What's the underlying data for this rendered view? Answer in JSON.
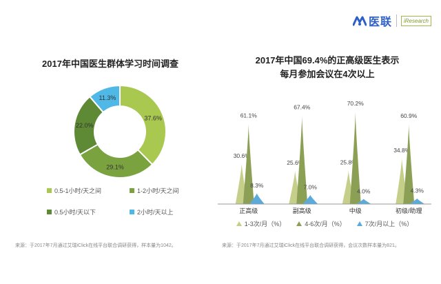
{
  "header": {
    "brand": "医联",
    "partner": "iResearch"
  },
  "colors": {
    "light_green": "#a9c850",
    "medium_green": "#7aa33f",
    "dark_green": "#5e8a36",
    "sky_blue": "#4fb8e6",
    "mtn_light": "#c6cf8a",
    "mtn_olive": "#8ca055",
    "mtn_blue": "#5aabdc",
    "brand_blue": "#2d5fc7"
  },
  "chart_data": [
    {
      "type": "pie",
      "variant": "donut",
      "title": "2017年中国医生群体学习时间调查",
      "slices": [
        {
          "label": "0.5-1小时/天之间",
          "value": 37.6,
          "value_label": "37.6%",
          "color": "#a9c850"
        },
        {
          "label": "1-2小时/天之间",
          "value": 29.1,
          "value_label": "29.1%",
          "color": "#7aa33f"
        },
        {
          "label": "0.5小时/天以下",
          "value": 22.0,
          "value_label": "22.0%",
          "color": "#5e8a36"
        },
        {
          "label": "2小时/天以上",
          "value": 11.3,
          "value_label": "11.3%",
          "color": "#4fb8e6"
        }
      ],
      "legend_rows": [
        [
          "0.5-1小时/天之间",
          "1-2小时/天之间"
        ],
        [
          "0.5小时/天以下",
          "2小时/天以上"
        ]
      ],
      "source": "来源：于2017年7月通过艾瑞iClick在线平台联合调研获得，样本量为1042。"
    },
    {
      "type": "bar",
      "variant": "mountain",
      "title": "2017年中国69.4%的正高级医生表示",
      "subtitle": "每月参加会议在4次以上",
      "categories": [
        "正高级",
        "副高级",
        "中级",
        "初级/助理"
      ],
      "series": [
        {
          "name": "1-3次/月（%）",
          "values": [
            30.6,
            25.6,
            25.8,
            34.8
          ],
          "labels": [
            "30.6%",
            "25.6%",
            "25.8%",
            "34.8%"
          ],
          "color": "#c6cf8a"
        },
        {
          "name": "4-6次/月（%）",
          "values": [
            61.1,
            67.4,
            70.2,
            60.9
          ],
          "labels": [
            "61.1%",
            "67.4%",
            "70.2%",
            "60.9%"
          ],
          "color": "#8ca055"
        },
        {
          "name": "7次/月以上（%）",
          "values": [
            8.3,
            7.0,
            4.0,
            4.3
          ],
          "labels": [
            "8.3%",
            "7.0%",
            "4.0%",
            "4.3%"
          ],
          "color": "#5aabdc"
        }
      ],
      "ylim": [
        0,
        75
      ],
      "grid": false,
      "legend_position": "bottom",
      "source": "来源：于2017年7月通过艾瑞iClick在线平台联合调研获得，会议次数样本量为821。"
    }
  ]
}
